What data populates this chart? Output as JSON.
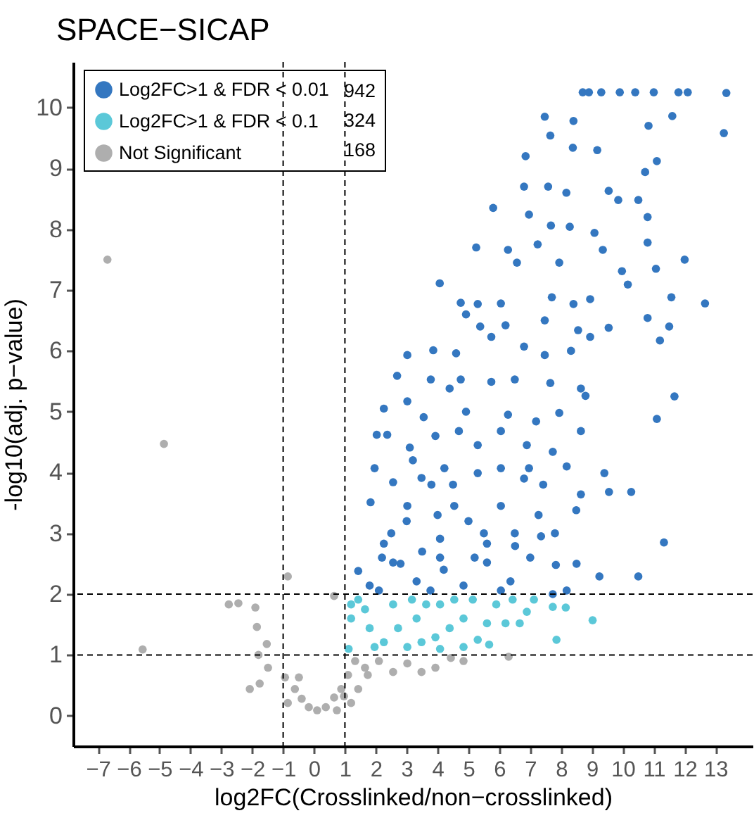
{
  "chart_data": {
    "type": "scatter",
    "title": "SPACE−SICAP",
    "xlabel": "log2FC(Crosslinked/non−crosslinked)",
    "ylabel": "-log10(adj. p−value)",
    "xlim": [
      -7.8,
      14.2
    ],
    "ylim": [
      -0.5,
      10.75
    ],
    "xticks": [
      -7,
      -6,
      -5,
      -4,
      -3,
      -2,
      -1,
      0,
      1,
      2,
      3,
      4,
      5,
      6,
      7,
      8,
      9,
      10,
      11,
      12,
      13
    ],
    "yticks": [
      0,
      1,
      2,
      3,
      4,
      5,
      6,
      7,
      8,
      9,
      10
    ],
    "grid": false,
    "legend": "top left",
    "marker": "circle",
    "annotations": [
      "942",
      "324",
      "168"
    ],
    "ref_lines": [
      {
        "axis": "x",
        "value": -1,
        "label": null,
        "color": "#000000",
        "line_style": "dashed"
      },
      {
        "axis": "x",
        "value": 1,
        "label": null,
        "color": "#000000",
        "line_style": "dashed"
      },
      {
        "axis": "y",
        "value": 1,
        "label": null,
        "color": "#000000",
        "line_style": "dashed"
      },
      {
        "axis": "y",
        "value": 2,
        "label": null,
        "color": "#000000",
        "line_style": "dashed"
      }
    ],
    "series": [
      {
        "name": "Log2FC>1 & FDR < 0.01",
        "color": "#3477c0",
        "x": [
          8.7,
          8.9,
          9.3,
          9.9,
          10.4,
          11,
          11.8,
          12.1,
          13.35,
          13.27,
          11.6,
          10.83,
          7.47,
          8.4,
          7.65,
          6.85,
          8.38,
          9.17,
          11.1,
          10.72,
          7.58,
          6.8,
          8.17,
          9.54,
          9.85,
          10.5,
          5.8,
          6.96,
          10.8,
          7.67,
          8.28,
          9.08,
          5.25,
          6.28,
          7.24,
          10.8,
          4.07,
          12,
          6.57,
          7.94,
          9.35,
          11.07,
          9.97,
          10.16,
          11.57,
          12.66,
          8.94,
          8.4,
          7.7,
          6.05,
          4.75,
          5.3,
          10.8,
          11.5,
          11.2,
          9.54,
          8.55,
          7.47,
          6.2,
          4.92,
          5.38,
          3.02,
          3.86,
          4.6,
          5.74,
          6.8,
          7.47,
          8.32,
          8.94,
          2.69,
          3.78,
          4.75,
          5.74,
          6.5,
          7.65,
          8.64,
          3.02,
          4.39,
          11.67,
          11.1,
          8.79,
          2.26,
          3.55,
          4.92,
          6.28,
          7.19,
          7.94,
          8.64,
          2.03,
          2.37,
          3.1,
          3.93,
          4.69,
          5.3,
          6.05,
          6.89,
          7.73,
          8.18,
          9.4,
          10.27,
          9.55,
          8.64,
          1.96,
          2.56,
          3.48,
          4.22,
          5.3,
          6.05,
          6.96,
          7.42,
          1.83,
          3.02,
          4.54,
          6.05,
          7.27,
          8.49,
          11.33,
          9.24,
          7.83,
          8.18,
          7.73,
          1.43,
          1.8,
          2.56,
          3.32,
          4.08,
          4.84,
          5.6,
          6.36,
          6.51,
          7.35,
          2.26,
          4.08,
          5.6,
          2.1,
          3.77,
          6.05,
          10.5,
          2.5,
          3,
          3.5,
          4,
          4.5,
          5,
          3.2,
          2.8,
          4.2,
          5.5,
          5.2,
          3.8,
          2.2,
          6.5,
          7,
          6.8,
          7.8,
          8.5
        ],
        "values": [
          10.25,
          10.25,
          10.25,
          10.25,
          10.25,
          10.25,
          10.25,
          10.25,
          10.24,
          9.58,
          9.86,
          9.7,
          9.85,
          9.78,
          9.54,
          9.2,
          9.34,
          9.3,
          9.12,
          8.94,
          8.7,
          8.7,
          8.6,
          8.63,
          8.48,
          8.48,
          8.35,
          8.24,
          8.2,
          8.06,
          8.04,
          7.94,
          7.7,
          7.66,
          7.75,
          7.78,
          7.11,
          7.5,
          7.45,
          7.45,
          7.66,
          7.35,
          7.31,
          7.09,
          6.88,
          6.78,
          6.85,
          6.77,
          6.88,
          6.78,
          6.79,
          6.77,
          6.54,
          6.4,
          6.17,
          6.38,
          6.34,
          6.5,
          6.42,
          6.6,
          6.4,
          5.93,
          6.01,
          5.96,
          6.23,
          6.07,
          5.93,
          6,
          6.23,
          5.59,
          5.53,
          5.53,
          5.49,
          5.53,
          5.47,
          5.38,
          5.17,
          5.38,
          5.25,
          4.88,
          5.26,
          5.05,
          4.91,
          5,
          4.95,
          4.84,
          4.98,
          4.68,
          4.62,
          4.62,
          4.41,
          4.6,
          4.68,
          4.45,
          4.68,
          4.45,
          4.34,
          4.1,
          3.99,
          3.68,
          3.68,
          3.64,
          4.07,
          3.84,
          3.91,
          4.07,
          3.99,
          4.07,
          4.07,
          3.8,
          3.51,
          3.45,
          3.45,
          3.45,
          3.3,
          3.38,
          2.85,
          2.29,
          2.48,
          2.06,
          2,
          2.38,
          2.14,
          2.52,
          2.21,
          2.6,
          2.14,
          2.52,
          2.21,
          2.79,
          2.95,
          2.83,
          2.91,
          2.83,
          2.06,
          2.06,
          2.06,
          2.29,
          3,
          3.2,
          2.7,
          3.3,
          3.8,
          3.2,
          4.2,
          2.5,
          2.4,
          3,
          2.6,
          3.8,
          2.6,
          3,
          2.6,
          3.9,
          3,
          2.5
        ]
      },
      {
        "name": "Log2FC>1 & FDR < 0.1",
        "color": "#5bc8d8",
        "x": [
          1.43,
          1.2,
          1.12,
          1.8,
          2.56,
          2.26,
          3.32,
          3.02,
          4.08,
          3.93,
          4.84,
          5.14,
          4.84,
          5.3,
          5.67,
          5.6,
          5.9,
          6.2,
          6.66,
          6.89,
          7.12,
          7.73,
          8.15,
          9.02,
          7.85,
          6.43,
          1.65,
          1.96,
          2.72,
          3.48,
          3.63,
          4.39,
          4.08,
          1.2,
          3.17,
          4.54
        ],
        "values": [
          1.91,
          1.6,
          1.1,
          1.44,
          1.83,
          1.21,
          1.6,
          1.13,
          1.83,
          1.29,
          1.6,
          1.91,
          1.13,
          1.25,
          1.17,
          1.52,
          1.83,
          1.52,
          1.52,
          1.71,
          1.91,
          1.79,
          1.78,
          1.57,
          1.25,
          1.91,
          1.75,
          1.13,
          1.44,
          1.21,
          1.83,
          1.44,
          1.1,
          1.83,
          1.91,
          1.91
        ]
      },
      {
        "name": "Not Significant",
        "color": "#aeaeae",
        "x": [
          -6.69,
          -4.86,
          -5.55,
          -2.76,
          -2.45,
          -1.9,
          -1.85,
          -1.8,
          -1.53,
          -1.76,
          -2.08,
          -0.85,
          -1.49,
          -0.94,
          -0.62,
          -0.4,
          -0.17,
          0.1,
          0.38,
          0.65,
          0.88,
          1.1,
          1.33,
          1.65,
          1.74,
          2.1,
          2.56,
          3.02,
          3.48,
          3.93,
          1.2,
          0.74,
          0.97,
          1.43,
          4.43,
          4.84,
          6.3,
          0.65,
          -0.49,
          -0.85
        ],
        "values": [
          7.5,
          4.47,
          1.09,
          1.83,
          1.85,
          1.78,
          1.46,
          1,
          1.18,
          0.53,
          0.44,
          2.29,
          0.79,
          0.63,
          0.44,
          0.28,
          0.14,
          0.09,
          0.14,
          0.3,
          0.44,
          0.67,
          0.9,
          0.79,
          0.67,
          0.9,
          0.72,
          0.86,
          0.72,
          0.79,
          0.21,
          0.09,
          0.32,
          0.44,
          0.95,
          0.9,
          0.97,
          1.97,
          0.63,
          0.21
        ]
      }
    ]
  }
}
